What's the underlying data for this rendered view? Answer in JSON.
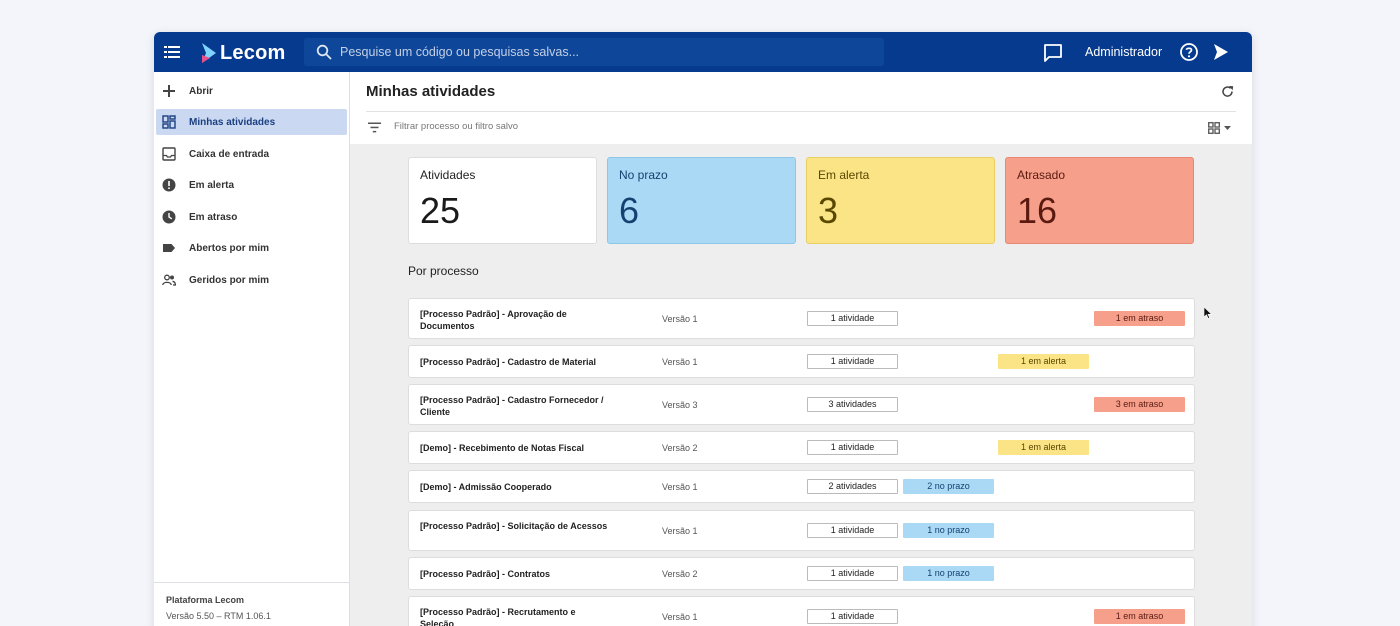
{
  "app": {
    "logo_text": "Lecom",
    "search_placeholder": "Pesquise um código ou pesquisas salvas...",
    "user_name": "Administrador",
    "brand_color": "#063a8e"
  },
  "sidebar": {
    "items": [
      {
        "label": "Abrir",
        "icon": "plus-icon"
      },
      {
        "label": "Minhas atividades",
        "icon": "dashboard-icon",
        "active": true
      },
      {
        "label": "Caixa de entrada",
        "icon": "inbox-icon"
      },
      {
        "label": "Em alerta",
        "icon": "alert-icon"
      },
      {
        "label": "Em atraso",
        "icon": "clock-icon"
      },
      {
        "label": "Abertos por mim",
        "icon": "label-icon"
      },
      {
        "label": "Geridos por mim",
        "icon": "people-icon"
      }
    ],
    "footer": {
      "platform": "Plataforma Lecom",
      "version": "Versão 5.50 – RTM 1.06.1"
    }
  },
  "main": {
    "title": "Minhas atividades",
    "filter_placeholder": "Filtrar processo ou filtro salvo",
    "summary": [
      {
        "label": "Atividades",
        "value": "25"
      },
      {
        "label": "No prazo",
        "value": "6"
      },
      {
        "label": "Em alerta",
        "value": "3"
      },
      {
        "label": "Atrasado",
        "value": "16"
      }
    ],
    "section_title": "Por processo",
    "processes": [
      {
        "name": "[Processo Padrão] - Aprovação de Documentos",
        "version": "Versão 1",
        "count": "1 atividade",
        "status": "1 em atraso",
        "status_type": "atraso"
      },
      {
        "name": "[Processo Padrão] - Cadastro de Material",
        "version": "Versão 1",
        "count": "1 atividade",
        "status": "1 em alerta",
        "status_type": "alerta"
      },
      {
        "name": "[Processo Padrão] - Cadastro Fornecedor / Cliente",
        "version": "Versão 3",
        "count": "3 atividades",
        "status": "3 em atraso",
        "status_type": "atraso"
      },
      {
        "name": "[Demo] - Recebimento de Notas Fiscal",
        "version": "Versão 2",
        "count": "1 atividade",
        "status": "1 em alerta",
        "status_type": "alerta"
      },
      {
        "name": "[Demo] - Admissão Cooperado",
        "version": "Versão 1",
        "count": "2 atividades",
        "status": "2 no prazo",
        "status_type": "prazo"
      },
      {
        "name": "[Processo Padrão] - Solicitação de Acessos",
        "version": "Versão 1",
        "count": "1 atividade",
        "status": "1 no prazo",
        "status_type": "prazo"
      },
      {
        "name": "[Processo Padrão] - Contratos",
        "version": "Versão 2",
        "count": "1 atividade",
        "status": "1 no prazo",
        "status_type": "prazo"
      },
      {
        "name": "[Processo Padrão] - Recrutamento e Seleção",
        "version": "Versão 1",
        "count": "1 atividade",
        "status": "1 em atraso",
        "status_type": "atraso"
      }
    ]
  }
}
